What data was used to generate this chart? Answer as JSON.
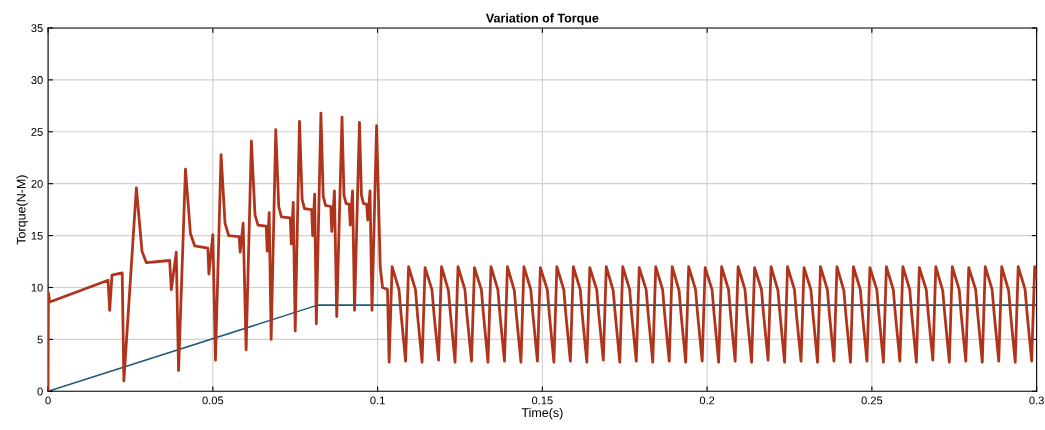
{
  "chart_data": {
    "type": "line",
    "title": "Variation of Torque",
    "xlabel": "Time(s)",
    "ylabel": "Torque(N-M)",
    "xlim": [
      0,
      0.3
    ],
    "xticks": [
      0,
      0.05,
      0.1,
      0.15,
      0.2,
      0.25,
      0.3
    ],
    "ylim": [
      0,
      35
    ],
    "yticks": [
      0,
      5,
      10,
      15,
      20,
      25,
      30,
      35
    ],
    "grid": true,
    "marker": "none",
    "line_style": "solid",
    "series": [
      {
        "color": "#b0341c",
        "x": [
          0,
          0.0001,
          0.0005,
          0.0182,
          0.0187,
          0.0194,
          0.0225,
          0.023,
          0.0268,
          0.0285,
          0.0298,
          0.0369,
          0.0374,
          0.0389,
          0.0396,
          0.0417,
          0.0432,
          0.0445,
          0.0485,
          0.0488,
          0.05,
          0.0508,
          0.0525,
          0.0537,
          0.0548,
          0.058,
          0.0583,
          0.0592,
          0.0601,
          0.0617,
          0.0628,
          0.0637,
          0.0662,
          0.0665,
          0.0671,
          0.0677,
          0.0691,
          0.07,
          0.0708,
          0.0735,
          0.0738,
          0.0744,
          0.075,
          0.0763,
          0.0771,
          0.0778,
          0.08,
          0.0803,
          0.0809,
          0.0814,
          0.0828,
          0.0835,
          0.0842,
          0.0858,
          0.0861,
          0.0869,
          0.0876,
          0.0892,
          0.0898,
          0.0904,
          0.0914,
          0.0917,
          0.0924,
          0.093,
          0.0945,
          0.0951,
          0.0957,
          0.0967,
          0.097,
          0.0977,
          0.0983,
          0.0997,
          0.1008,
          0.1015,
          0.103,
          0.1035,
          0.1044,
          0.1065,
          0.1071,
          0.1085,
          0.1094,
          0.1115,
          0.1121,
          0.1135,
          0.1144,
          0.1165,
          0.1171,
          0.1185,
          0.1194,
          0.1215,
          0.1221,
          0.1235,
          0.1244,
          0.1265,
          0.1271,
          0.1285,
          0.1294,
          0.1315,
          0.1321,
          0.1335,
          0.1344,
          0.1365,
          0.1371,
          0.1385,
          0.1394,
          0.1415,
          0.1421,
          0.1435,
          0.1444,
          0.1465,
          0.1471,
          0.1485,
          0.1494,
          0.1515,
          0.1521,
          0.1535,
          0.1544,
          0.1565,
          0.1571,
          0.1585,
          0.1594,
          0.1615,
          0.1621,
          0.1635,
          0.1644,
          0.1665,
          0.1671,
          0.1685,
          0.1694,
          0.1715,
          0.1721,
          0.1735,
          0.1744,
          0.1765,
          0.1771,
          0.1785,
          0.1794,
          0.1815,
          0.1821,
          0.1835,
          0.1844,
          0.1865,
          0.1871,
          0.1885,
          0.1894,
          0.1915,
          0.1921,
          0.1935,
          0.1944,
          0.1965,
          0.1971,
          0.1985,
          0.1994,
          0.2015,
          0.2021,
          0.2035,
          0.2044,
          0.2065,
          0.2071,
          0.2085,
          0.2094,
          0.2115,
          0.2121,
          0.2135,
          0.2144,
          0.2165,
          0.2171,
          0.2185,
          0.2194,
          0.2215,
          0.2221,
          0.2235,
          0.2244,
          0.2265,
          0.2271,
          0.2285,
          0.2294,
          0.2315,
          0.2321,
          0.2335,
          0.2344,
          0.2365,
          0.2371,
          0.2385,
          0.2394,
          0.2415,
          0.2421,
          0.2435,
          0.2444,
          0.2465,
          0.2471,
          0.2485,
          0.2494,
          0.2515,
          0.2521,
          0.2535,
          0.2544,
          0.2565,
          0.2571,
          0.2585,
          0.2594,
          0.2615,
          0.2621,
          0.2635,
          0.2644,
          0.2665,
          0.2671,
          0.2685,
          0.2694,
          0.2715,
          0.2721,
          0.2735,
          0.2744,
          0.2765,
          0.2771,
          0.2785,
          0.2794,
          0.2815,
          0.2821,
          0.2835,
          0.2844,
          0.2865,
          0.2871,
          0.2885,
          0.2894,
          0.2915,
          0.2921,
          0.2935,
          0.2944,
          0.2965,
          0.2971,
          0.2985,
          0.2994,
          0.3
        ],
        "values": [
          0,
          9.5,
          8.6,
          10.7,
          7.8,
          11.2,
          11.4,
          1.0,
          19.6,
          13.5,
          12.4,
          12.6,
          9.8,
          13.4,
          2.0,
          21.4,
          15.2,
          14.0,
          13.8,
          11.3,
          15.1,
          3.0,
          22.8,
          16.2,
          15.0,
          14.9,
          13.4,
          16.2,
          4.0,
          24.1,
          17.0,
          16.0,
          15.9,
          13.5,
          17.2,
          5.0,
          25.2,
          17.8,
          16.8,
          16.7,
          14.2,
          18.2,
          5.8,
          26.0,
          18.5,
          17.6,
          17.5,
          15.0,
          19.0,
          6.5,
          26.8,
          18.8,
          17.9,
          17.8,
          15.4,
          19.3,
          7.2,
          26.4,
          18.9,
          18.1,
          18.0,
          16.0,
          19.3,
          7.8,
          25.9,
          18.9,
          18.1,
          18.0,
          16.5,
          19.3,
          7.8,
          25.6,
          12.0,
          10.0,
          9.8,
          2.8,
          12.0,
          9.8,
          7.5,
          2.9,
          12.0,
          9.8,
          7.4,
          2.8,
          11.9,
          9.8,
          7.5,
          3.0,
          12.0,
          9.7,
          7.5,
          2.8,
          12.0,
          9.8,
          7.4,
          2.9,
          11.9,
          9.8,
          7.5,
          2.8,
          12.0,
          9.8,
          7.5,
          2.9,
          12.0,
          9.7,
          7.4,
          2.8,
          12.0,
          9.8,
          7.5,
          2.9,
          11.9,
          9.8,
          7.5,
          2.8,
          12.0,
          9.8,
          7.5,
          2.9,
          12.0,
          9.8,
          7.4,
          2.8,
          11.9,
          9.8,
          7.5,
          3.0,
          12.0,
          9.7,
          7.5,
          2.8,
          12.0,
          9.8,
          7.4,
          2.9,
          11.9,
          9.8,
          7.5,
          2.8,
          12.0,
          9.8,
          7.5,
          2.9,
          12.0,
          9.7,
          7.4,
          2.8,
          12.0,
          9.8,
          7.5,
          2.9,
          11.9,
          9.8,
          7.5,
          2.8,
          12.0,
          9.8,
          7.5,
          2.9,
          12.0,
          9.8,
          7.4,
          2.8,
          11.9,
          9.8,
          7.5,
          3.0,
          12.0,
          9.7,
          7.5,
          2.8,
          12.0,
          9.8,
          7.4,
          2.9,
          11.9,
          9.8,
          7.5,
          2.8,
          12.0,
          9.8,
          7.5,
          2.9,
          12.0,
          9.7,
          7.4,
          2.8,
          12.0,
          9.8,
          7.5,
          2.9,
          11.9,
          9.8,
          7.5,
          2.8,
          12.0,
          9.8,
          7.5,
          2.9,
          12.0,
          9.8,
          7.4,
          2.8,
          11.9,
          9.8,
          7.5,
          3.0,
          12.0,
          9.7,
          7.5,
          2.8,
          12.0,
          9.8,
          7.4,
          2.9,
          11.9,
          9.8,
          7.5,
          2.8,
          12.0,
          9.8,
          7.5,
          2.9,
          12.0,
          9.7,
          7.4,
          2.8,
          12.0,
          9.8,
          7.5,
          2.9,
          12.0,
          11.0
        ]
      },
      {
        "color": "#1f5a7a",
        "x": [
          0,
          0.0818,
          0.3
        ],
        "values": [
          0,
          8.3,
          8.3
        ]
      }
    ]
  }
}
